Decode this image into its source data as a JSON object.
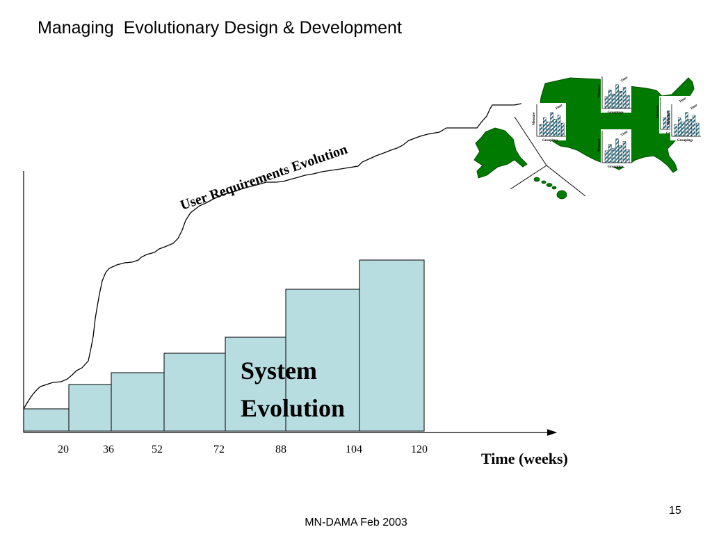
{
  "slide": {
    "title": "Managing  Evolutionary Design & Development",
    "page_number": "15",
    "footer": "MN-DAMA  Feb 2003"
  },
  "diagram": {
    "curve_label": "User Requirements Evolution",
    "system_label_line1": "System",
    "system_label_line2": "Evolution",
    "x_axis_label": "Time (weeks)",
    "x_ticks": [
      "20",
      "36",
      "52",
      "72",
      "88",
      "104",
      "120"
    ],
    "bar_fill": "#b7dde1",
    "map_color": "#007a00"
  },
  "map_inset": {
    "mini_charts": [
      {
        "measure": "Measure",
        "time": "Time",
        "groupings": "Groupings"
      },
      {
        "measure": "Measure",
        "time": "Time",
        "groupings": "Groupings"
      },
      {
        "measure": "Measure",
        "time": "Time",
        "groupings": "Groupings"
      },
      {
        "measure": "Measure",
        "time": "Time",
        "groupings": "Groupings"
      },
      {
        "measure": "Measure",
        "time": "Time",
        "groupings": "Groupings"
      }
    ]
  }
}
